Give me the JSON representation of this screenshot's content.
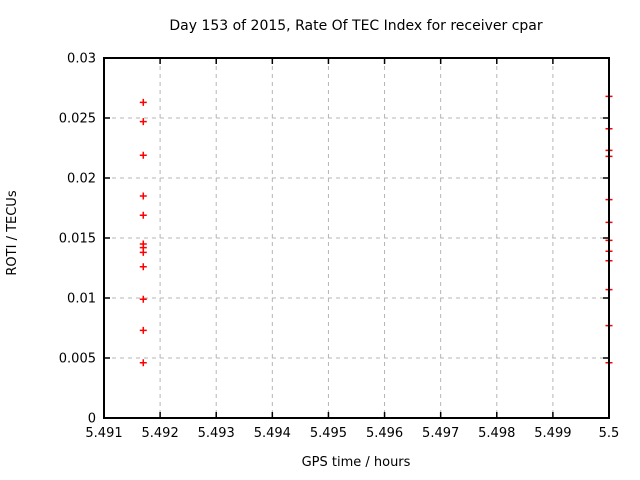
{
  "chart_data": {
    "type": "scatter",
    "title": "Day 153 of 2015, Rate Of TEC Index for receiver cpar",
    "xlabel": "GPS time / hours",
    "ylabel": "ROTI / TECUs",
    "xlim": [
      5.491,
      5.5
    ],
    "ylim": [
      0,
      0.03
    ],
    "grid": true,
    "legend": false,
    "x_ticks": {
      "values": [
        5.491,
        5.492,
        5.493,
        5.494,
        5.495,
        5.496,
        5.497,
        5.498,
        5.499,
        5.5
      ],
      "labels": [
        "5.491",
        "5.492",
        "5.493",
        "5.494",
        "5.495",
        "5.496",
        "5.497",
        "5.498",
        "5.499",
        "5.5"
      ]
    },
    "y_ticks": {
      "values": [
        0,
        0.005,
        0.01,
        0.015,
        0.02,
        0.025,
        0.03
      ],
      "labels": [
        "0",
        "0.005",
        "0.01",
        "0.015",
        "0.02",
        "0.025",
        "0.03"
      ]
    },
    "marker": {
      "symbol": "plus",
      "size": 7
    },
    "series": [
      {
        "name": "ROTI",
        "x": [
          5.4917,
          5.4917,
          5.4917,
          5.4917,
          5.4917,
          5.4917,
          5.4917,
          5.4917,
          5.4917,
          5.4917,
          5.4917,
          5.4917,
          5.5,
          5.5,
          5.5,
          5.5,
          5.5,
          5.5,
          5.5,
          5.5,
          5.5,
          5.5,
          5.5,
          5.5
        ],
        "y": [
          0.0263,
          0.0247,
          0.0219,
          0.0185,
          0.0169,
          0.0145,
          0.0142,
          0.0138,
          0.0126,
          0.0099,
          0.0073,
          0.0046,
          0.0268,
          0.0241,
          0.0223,
          0.0218,
          0.0182,
          0.0163,
          0.0148,
          0.0139,
          0.0131,
          0.0107,
          0.0077,
          0.0046
        ]
      }
    ]
  },
  "colors": {
    "marker": "#ff0000",
    "grid": "#b5b5b5",
    "frame": "#000000",
    "background": "#ffffff"
  }
}
